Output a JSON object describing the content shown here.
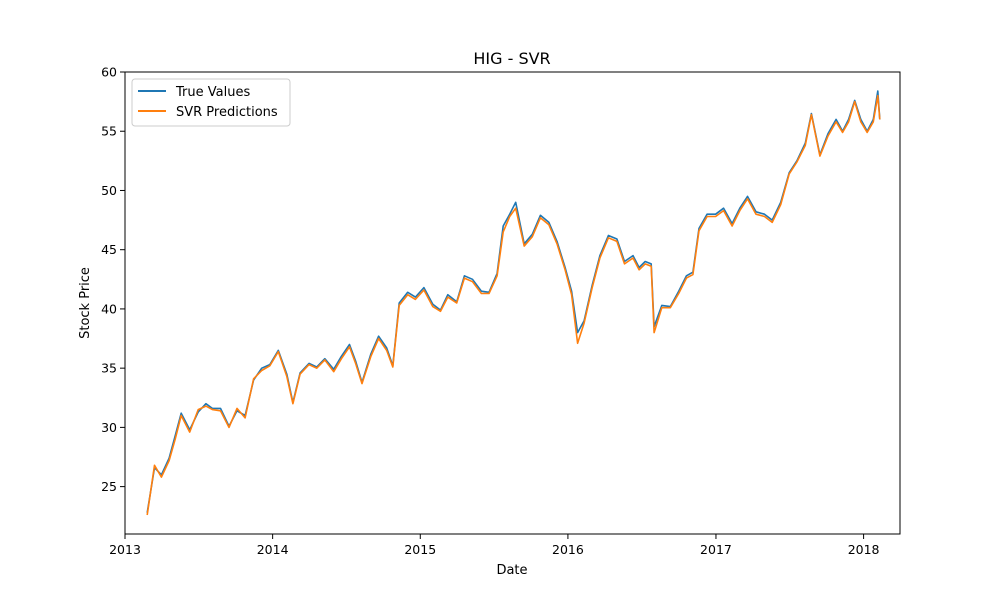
{
  "chart_data": {
    "type": "line",
    "title": "HIG - SVR",
    "xlabel": "Date",
    "ylabel": "Stock Price",
    "xlim": [
      "2013-01-01",
      "2018-04-01"
    ],
    "ylim": [
      21,
      60
    ],
    "x_ticks": [
      "2013",
      "2014",
      "2015",
      "2016",
      "2017",
      "2018"
    ],
    "y_ticks": [
      25,
      30,
      35,
      40,
      45,
      50,
      55,
      60
    ],
    "grid": false,
    "legend_position": "top-left",
    "series": [
      {
        "name": "True Values",
        "color": "#1f77b4",
        "x": [
          "2013-02-25",
          "2013-03-15",
          "2013-04-01",
          "2013-04-20",
          "2013-05-05",
          "2013-05-20",
          "2013-06-10",
          "2013-07-01",
          "2013-07-20",
          "2013-08-05",
          "2013-08-25",
          "2013-09-15",
          "2013-10-05",
          "2013-10-25",
          "2013-11-15",
          "2013-12-05",
          "2013-12-25",
          "2014-01-15",
          "2014-02-05",
          "2014-02-20",
          "2014-03-10",
          "2014-04-01",
          "2014-04-20",
          "2014-05-10",
          "2014-06-01",
          "2014-06-20",
          "2014-07-10",
          "2014-07-25",
          "2014-08-10",
          "2014-09-01",
          "2014-09-20",
          "2014-10-10",
          "2014-10-25",
          "2014-11-10",
          "2014-12-01",
          "2014-12-20",
          "2015-01-10",
          "2015-02-01",
          "2015-02-20",
          "2015-03-10",
          "2015-04-01",
          "2015-04-20",
          "2015-05-10",
          "2015-06-01",
          "2015-06-20",
          "2015-07-10",
          "2015-07-25",
          "2015-08-10",
          "2015-08-25",
          "2015-09-15",
          "2015-10-05",
          "2015-10-25",
          "2015-11-15",
          "2015-12-05",
          "2015-12-25",
          "2016-01-10",
          "2016-01-25",
          "2016-02-10",
          "2016-03-01",
          "2016-03-20",
          "2016-04-10",
          "2016-05-01",
          "2016-05-20",
          "2016-06-10",
          "2016-06-25",
          "2016-07-10",
          "2016-07-25",
          "2016-08-01",
          "2016-08-20",
          "2016-09-10",
          "2016-10-01",
          "2016-10-20",
          "2016-11-05",
          "2016-11-20",
          "2016-12-10",
          "2016-12-31",
          "2017-01-20",
          "2017-02-10",
          "2017-03-01",
          "2017-03-20",
          "2017-04-10",
          "2017-05-01",
          "2017-05-20",
          "2017-06-10",
          "2017-07-01",
          "2017-07-20",
          "2017-08-10",
          "2017-08-25",
          "2017-09-15",
          "2017-10-05",
          "2017-10-25",
          "2017-11-10",
          "2017-11-25",
          "2017-12-10",
          "2017-12-25",
          "2018-01-10",
          "2018-01-25",
          "2018-02-05",
          "2018-02-10"
        ],
        "y": [
          22.8,
          26.6,
          26.0,
          27.4,
          29.3,
          31.2,
          29.8,
          31.3,
          32.0,
          31.6,
          31.6,
          30.1,
          31.4,
          31.0,
          34.0,
          35.0,
          35.3,
          36.5,
          34.5,
          32.1,
          34.6,
          35.4,
          35.1,
          35.8,
          34.9,
          36.0,
          37.0,
          35.6,
          33.8,
          36.2,
          37.7,
          36.7,
          35.2,
          40.5,
          41.4,
          41.0,
          41.8,
          40.4,
          39.9,
          41.2,
          40.6,
          42.8,
          42.5,
          41.5,
          41.4,
          43.0,
          47.0,
          48.0,
          49.0,
          45.5,
          46.3,
          47.9,
          47.3,
          45.7,
          43.5,
          41.5,
          38.0,
          39.0,
          42.0,
          44.5,
          46.2,
          45.9,
          44.0,
          44.5,
          43.5,
          44.0,
          43.8,
          38.5,
          40.3,
          40.2,
          41.5,
          42.8,
          43.1,
          46.8,
          48.0,
          48.0,
          48.5,
          47.2,
          48.5,
          49.5,
          48.2,
          48.0,
          47.5,
          49.0,
          51.5,
          52.5,
          54.0,
          56.5,
          53.0,
          54.8,
          56.0,
          55.0,
          56.0,
          57.6,
          56.0,
          55.0,
          56.0,
          58.4,
          56.0
        ]
      },
      {
        "name": "SVR Predictions",
        "color": "#ff7f0e",
        "x": [
          "2013-02-25",
          "2013-03-15",
          "2013-04-01",
          "2013-04-20",
          "2013-05-05",
          "2013-05-20",
          "2013-06-10",
          "2013-07-01",
          "2013-07-20",
          "2013-08-05",
          "2013-08-25",
          "2013-09-15",
          "2013-10-05",
          "2013-10-25",
          "2013-11-15",
          "2013-12-05",
          "2013-12-25",
          "2014-01-15",
          "2014-02-05",
          "2014-02-20",
          "2014-03-10",
          "2014-04-01",
          "2014-04-20",
          "2014-05-10",
          "2014-06-01",
          "2014-06-20",
          "2014-07-10",
          "2014-07-25",
          "2014-08-10",
          "2014-09-01",
          "2014-09-20",
          "2014-10-10",
          "2014-10-25",
          "2014-11-10",
          "2014-12-01",
          "2014-12-20",
          "2015-01-10",
          "2015-02-01",
          "2015-02-20",
          "2015-03-10",
          "2015-04-01",
          "2015-04-20",
          "2015-05-10",
          "2015-06-01",
          "2015-06-20",
          "2015-07-10",
          "2015-07-25",
          "2015-08-10",
          "2015-08-25",
          "2015-09-15",
          "2015-10-05",
          "2015-10-25",
          "2015-11-15",
          "2015-12-05",
          "2015-12-25",
          "2016-01-10",
          "2016-01-25",
          "2016-02-10",
          "2016-03-01",
          "2016-03-20",
          "2016-04-10",
          "2016-05-01",
          "2016-05-20",
          "2016-06-10",
          "2016-06-25",
          "2016-07-10",
          "2016-07-25",
          "2016-08-01",
          "2016-08-20",
          "2016-09-10",
          "2016-10-01",
          "2016-10-20",
          "2016-11-05",
          "2016-11-20",
          "2016-12-10",
          "2016-12-31",
          "2017-01-20",
          "2017-02-10",
          "2017-03-01",
          "2017-03-20",
          "2017-04-10",
          "2017-05-01",
          "2017-05-20",
          "2017-06-10",
          "2017-07-01",
          "2017-07-20",
          "2017-08-10",
          "2017-08-25",
          "2017-09-15",
          "2017-10-05",
          "2017-10-25",
          "2017-11-10",
          "2017-11-25",
          "2017-12-10",
          "2017-12-25",
          "2018-01-10",
          "2018-01-25",
          "2018-02-05",
          "2018-02-10"
        ],
        "y": [
          22.6,
          26.8,
          25.8,
          27.2,
          29.0,
          31.0,
          29.6,
          31.5,
          31.8,
          31.5,
          31.4,
          30.0,
          31.6,
          30.8,
          34.1,
          34.8,
          35.2,
          36.4,
          34.3,
          32.0,
          34.5,
          35.3,
          35.0,
          35.7,
          34.7,
          35.8,
          36.8,
          35.4,
          33.7,
          36.0,
          37.5,
          36.5,
          35.1,
          40.3,
          41.2,
          40.8,
          41.6,
          40.2,
          39.8,
          41.0,
          40.5,
          42.6,
          42.3,
          41.3,
          41.3,
          42.8,
          46.5,
          47.8,
          48.5,
          45.3,
          46.1,
          47.7,
          47.1,
          45.5,
          43.3,
          41.2,
          37.1,
          38.8,
          41.8,
          44.3,
          46.0,
          45.7,
          43.8,
          44.3,
          43.3,
          43.8,
          43.6,
          38.0,
          40.1,
          40.1,
          41.3,
          42.6,
          42.9,
          46.6,
          47.8,
          47.8,
          48.3,
          47.0,
          48.3,
          49.3,
          48.0,
          47.8,
          47.3,
          48.8,
          51.4,
          52.4,
          53.8,
          56.4,
          52.9,
          54.6,
          55.8,
          54.9,
          55.8,
          57.5,
          55.8,
          54.9,
          55.8,
          58.0,
          56.0
        ]
      }
    ]
  }
}
